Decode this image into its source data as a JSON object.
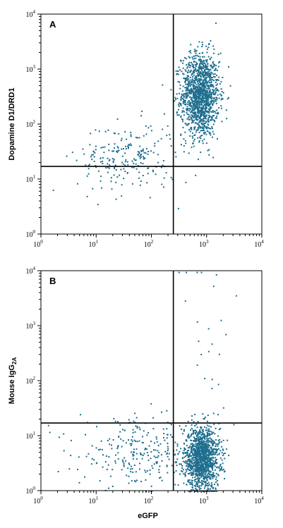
{
  "chart_data": [
    {
      "type": "scatter",
      "panel_label": "A",
      "xlabel": "",
      "ylabel": "Dopamine D1/DRD1",
      "xscale": "log",
      "yscale": "log",
      "xlim": [
        1,
        10000
      ],
      "ylim": [
        1,
        10000
      ],
      "x_ticks": [
        {
          "base": "10",
          "exp": "0"
        },
        {
          "base": "10",
          "exp": "1"
        },
        {
          "base": "10",
          "exp": "2"
        },
        {
          "base": "10",
          "exp": "3"
        },
        {
          "base": "10",
          "exp": "4"
        }
      ],
      "y_ticks": [
        {
          "base": "10",
          "exp": "0"
        },
        {
          "base": "10",
          "exp": "1"
        },
        {
          "base": "10",
          "exp": "2"
        },
        {
          "base": "10",
          "exp": "3"
        },
        {
          "base": "10",
          "exp": "4"
        }
      ],
      "quadrant_gate": {
        "x": 250,
        "y": 17
      },
      "dot_color": "#1e6e8e",
      "clusters": [
        {
          "center": [
            750,
            350
          ],
          "log_spread": [
            0.17,
            0.38
          ],
          "count": 1400
        },
        {
          "center": [
            35,
            25
          ],
          "log_spread": [
            0.45,
            0.32
          ],
          "count": 220
        }
      ]
    },
    {
      "type": "scatter",
      "panel_label": "B",
      "xlabel": "eGFP",
      "ylabel": "Mouse IgG",
      "ylabel_sub": "2A",
      "xscale": "log",
      "yscale": "log",
      "xlim": [
        1,
        10000
      ],
      "ylim": [
        1,
        10000
      ],
      "x_ticks": [
        {
          "base": "10",
          "exp": "0"
        },
        {
          "base": "10",
          "exp": "1"
        },
        {
          "base": "10",
          "exp": "2"
        },
        {
          "base": "10",
          "exp": "3"
        },
        {
          "base": "10",
          "exp": "4"
        }
      ],
      "y_ticks": [
        {
          "base": "10",
          "exp": "0"
        },
        {
          "base": "10",
          "exp": "1"
        },
        {
          "base": "10",
          "exp": "2"
        },
        {
          "base": "10",
          "exp": "3"
        },
        {
          "base": "10",
          "exp": "4"
        }
      ],
      "quadrant_gate": {
        "x": 250,
        "y": 17
      },
      "dot_color": "#1e6e8e",
      "clusters": [
        {
          "center": [
            800,
            4
          ],
          "log_spread": [
            0.16,
            0.28
          ],
          "count": 1300
        },
        {
          "center": [
            60,
            5
          ],
          "log_spread": [
            0.55,
            0.3
          ],
          "count": 260
        },
        {
          "center": [
            900,
            600
          ],
          "log_spread": [
            0.25,
            0.9
          ],
          "count": 25
        }
      ]
    }
  ]
}
